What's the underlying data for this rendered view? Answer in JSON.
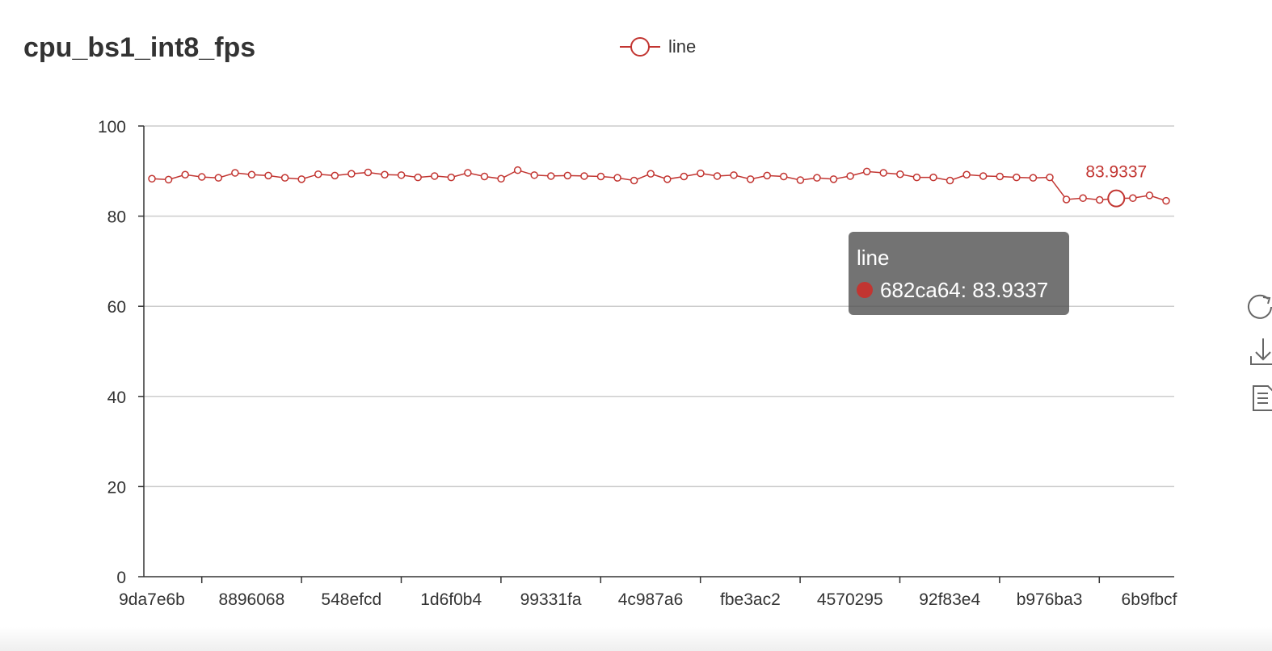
{
  "colors": {
    "series": "#c23531",
    "axis": "#333333",
    "grid": "#cccccc",
    "tooltip_bg": "rgba(80,80,80,0.8)"
  },
  "legend": {
    "icon": "line-circle-marker-icon",
    "label": "line"
  },
  "tooltip": {
    "title": "line",
    "text": "682ca64: 83.9337"
  },
  "toolbox": {
    "icons": [
      "restore-icon",
      "save-image-icon",
      "data-view-icon"
    ]
  },
  "chart_data": {
    "type": "line",
    "title": "cpu_bs1_int8_fps",
    "xlabel": "",
    "ylabel": "",
    "ylim": [
      0,
      100
    ],
    "yticks": [
      0,
      20,
      40,
      60,
      80,
      100
    ],
    "x_tick_labels": [
      "9da7e6b",
      "8896068",
      "548efcd",
      "1d6f0b4",
      "99331fa",
      "4c987a6",
      "fbe3ac2",
      "4570295",
      "92f83e4",
      "b976ba3",
      "6b9fbcf"
    ],
    "grid": true,
    "legend_position": "top-center",
    "series": [
      {
        "name": "line",
        "values": [
          88.3,
          88.1,
          89.2,
          88.7,
          88.5,
          89.6,
          89.2,
          89.0,
          88.5,
          88.2,
          89.3,
          89.0,
          89.4,
          89.7,
          89.2,
          89.1,
          88.6,
          88.9,
          88.6,
          89.6,
          88.8,
          88.3,
          90.2,
          89.1,
          88.9,
          89.0,
          88.9,
          88.8,
          88.5,
          87.9,
          89.4,
          88.2,
          88.8,
          89.5,
          88.9,
          89.1,
          88.2,
          89.0,
          88.8,
          88.0,
          88.5,
          88.2,
          88.9,
          89.9,
          89.6,
          89.3,
          88.6,
          88.6,
          87.9,
          89.2,
          88.9,
          88.8,
          88.6,
          88.5,
          88.6,
          83.7,
          84.0,
          83.6,
          83.9337,
          84.0,
          84.6,
          83.4
        ],
        "highlighted_index": 58,
        "highlighted_label": "83.9337"
      }
    ]
  }
}
